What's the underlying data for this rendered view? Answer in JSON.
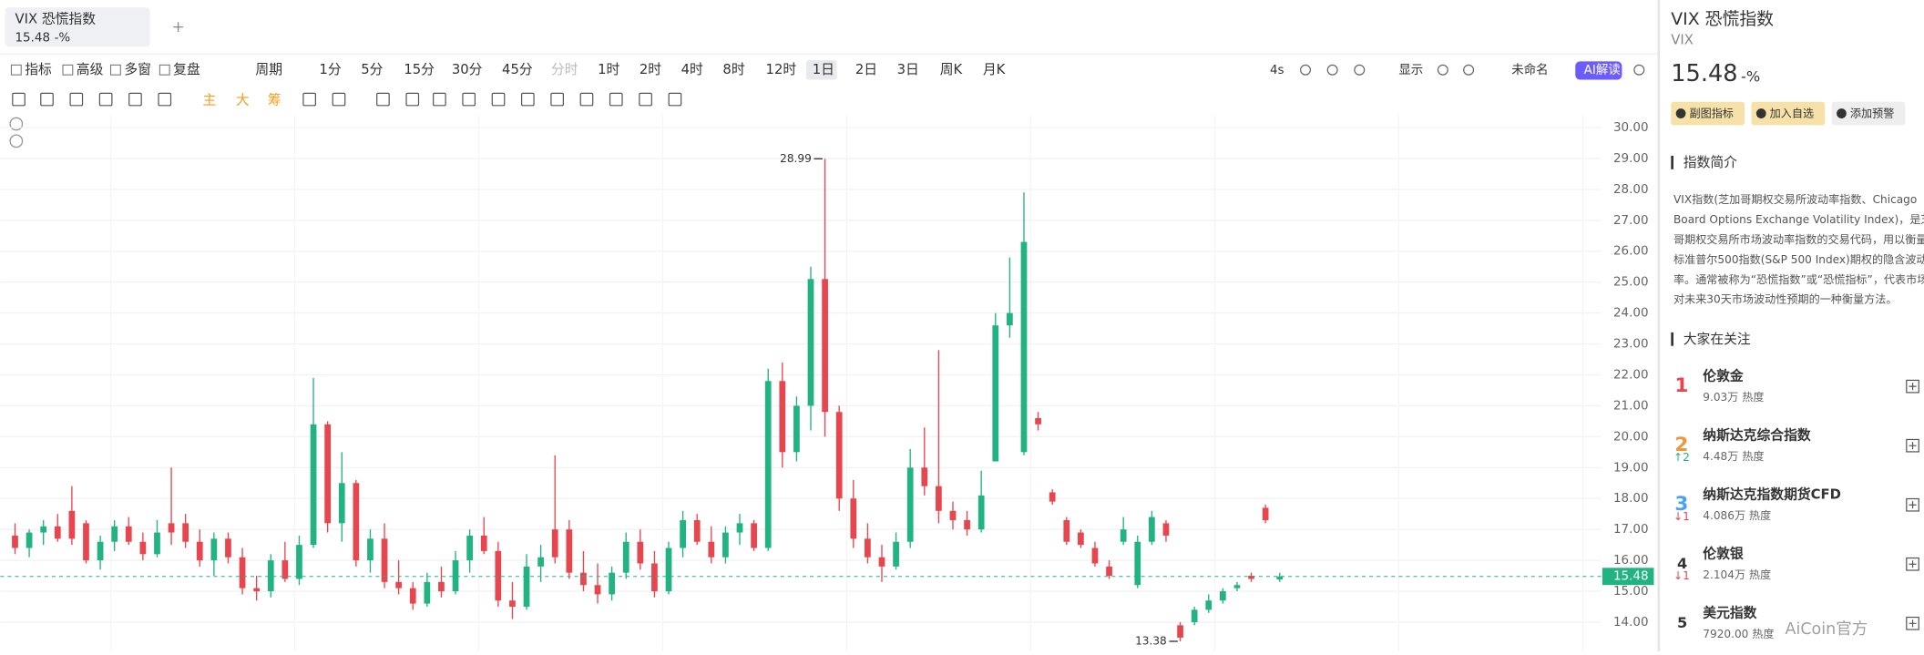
{
  "tab": {
    "name": "VIX 恐慌指数",
    "price": "15.48",
    "change": "-%"
  },
  "toolbar": {
    "items": [
      "指标",
      "高级",
      "多窗",
      "复盘",
      "周期",
      "1分",
      "5分",
      "15分",
      "30分",
      "45分",
      "分时",
      "1时",
      "2时",
      "4时",
      "8时",
      "12时",
      "1日",
      "2日",
      "3日",
      "周K",
      "月K"
    ],
    "active_index": 16,
    "disabled_index": 10,
    "right": [
      "4s",
      "显示",
      "未命名",
      "AI解读"
    ],
    "draw_labels": [
      "主",
      "大",
      "筹"
    ]
  },
  "chart_data": {
    "type": "candlestick",
    "ylim": [
      13,
      30.4
    ],
    "yticks": [
      {
        "value": 14,
        "label": "14.00"
      },
      {
        "value": 15,
        "label": "15.00"
      },
      {
        "value": 16,
        "label": "16.00"
      },
      {
        "value": 17,
        "label": "17.00"
      },
      {
        "value": 18,
        "label": "18.00"
      },
      {
        "value": 19,
        "label": "19.00"
      },
      {
        "value": 20,
        "label": "20.00"
      },
      {
        "value": 21,
        "label": "21.00"
      },
      {
        "value": 22,
        "label": "22.00"
      },
      {
        "value": 23,
        "label": "23.00"
      },
      {
        "value": 24,
        "label": "24.00"
      },
      {
        "value": 25,
        "label": "25.00"
      },
      {
        "value": 26,
        "label": "26.00"
      },
      {
        "value": 27,
        "label": "27.00"
      },
      {
        "value": 28,
        "label": "28.00"
      },
      {
        "value": 29,
        "label": "29.00"
      },
      {
        "value": 30,
        "label": "30.00"
      }
    ],
    "grid": true,
    "up_color": "#22b383",
    "down_color": "#e8464f",
    "candles": [
      [
        16.8,
        17.2,
        16.2,
        16.4
      ],
      [
        16.4,
        17.0,
        16.1,
        16.9
      ],
      [
        16.9,
        17.3,
        16.5,
        17.1
      ],
      [
        17.1,
        17.5,
        16.6,
        16.7
      ],
      [
        17.6,
        18.4,
        16.5,
        16.7
      ],
      [
        17.2,
        17.3,
        15.9,
        16.0
      ],
      [
        16.0,
        16.8,
        15.7,
        16.6
      ],
      [
        16.6,
        17.3,
        16.3,
        17.1
      ],
      [
        17.1,
        17.4,
        16.5,
        16.6
      ],
      [
        16.6,
        16.9,
        16.0,
        16.2
      ],
      [
        16.2,
        17.3,
        16.1,
        16.9
      ],
      [
        17.2,
        19.0,
        16.5,
        16.9
      ],
      [
        17.2,
        17.5,
        16.4,
        16.6
      ],
      [
        16.6,
        17.0,
        15.8,
        16.0
      ],
      [
        16.0,
        16.9,
        15.5,
        16.7
      ],
      [
        16.7,
        16.9,
        15.9,
        16.1
      ],
      [
        16.1,
        16.4,
        14.9,
        15.1
      ],
      [
        15.1,
        15.5,
        14.7,
        15.0
      ],
      [
        15.0,
        16.2,
        14.8,
        16.0
      ],
      [
        16.0,
        16.6,
        15.3,
        15.4
      ],
      [
        15.4,
        16.8,
        15.2,
        16.5
      ],
      [
        16.5,
        21.9,
        16.4,
        20.4
      ],
      [
        20.4,
        20.5,
        16.9,
        17.2
      ],
      [
        17.2,
        19.5,
        16.6,
        18.5
      ],
      [
        18.5,
        18.6,
        15.8,
        16.0
      ],
      [
        16.0,
        17.0,
        15.6,
        16.7
      ],
      [
        16.7,
        17.2,
        15.1,
        15.3
      ],
      [
        15.3,
        16.0,
        14.9,
        15.1
      ],
      [
        15.1,
        15.3,
        14.4,
        14.6
      ],
      [
        14.6,
        15.6,
        14.5,
        15.3
      ],
      [
        15.3,
        15.8,
        14.8,
        15.0
      ],
      [
        15.0,
        16.3,
        14.9,
        16.0
      ],
      [
        16.0,
        17.0,
        15.6,
        16.8
      ],
      [
        16.8,
        17.4,
        16.2,
        16.3
      ],
      [
        16.3,
        16.6,
        14.5,
        14.7
      ],
      [
        14.7,
        15.3,
        14.1,
        14.5
      ],
      [
        14.5,
        16.2,
        14.4,
        15.8
      ],
      [
        15.8,
        16.5,
        15.3,
        16.1
      ],
      [
        17.0,
        19.4,
        15.9,
        16.1
      ],
      [
        17.0,
        17.3,
        15.4,
        15.6
      ],
      [
        15.6,
        16.3,
        15.0,
        15.2
      ],
      [
        15.2,
        15.9,
        14.6,
        14.9
      ],
      [
        14.9,
        15.8,
        14.7,
        15.6
      ],
      [
        15.6,
        16.9,
        15.4,
        16.6
      ],
      [
        16.6,
        17.0,
        15.7,
        15.9
      ],
      [
        15.9,
        16.3,
        14.8,
        15.0
      ],
      [
        15.0,
        16.6,
        14.9,
        16.4
      ],
      [
        16.4,
        17.6,
        16.1,
        17.3
      ],
      [
        17.3,
        17.5,
        16.5,
        16.6
      ],
      [
        16.6,
        17.1,
        15.9,
        16.1
      ],
      [
        16.1,
        17.1,
        15.9,
        16.9
      ],
      [
        16.9,
        17.5,
        16.5,
        17.2
      ],
      [
        17.2,
        17.3,
        16.3,
        16.4
      ],
      [
        16.4,
        22.2,
        16.3,
        21.8
      ],
      [
        21.8,
        22.4,
        19.0,
        19.5
      ],
      [
        19.5,
        21.3,
        19.2,
        21.0
      ],
      [
        21.0,
        25.5,
        20.2,
        25.1
      ],
      [
        25.1,
        28.99,
        20.0,
        20.8
      ],
      [
        20.8,
        21.0,
        17.6,
        18.0
      ],
      [
        18.0,
        18.6,
        16.4,
        16.7
      ],
      [
        16.7,
        17.2,
        15.9,
        16.1
      ],
      [
        16.1,
        16.5,
        15.3,
        15.8
      ],
      [
        15.8,
        16.9,
        15.7,
        16.6
      ],
      [
        16.6,
        19.6,
        16.4,
        19.0
      ],
      [
        19.0,
        20.3,
        18.1,
        18.4
      ],
      [
        18.4,
        22.8,
        17.2,
        17.6
      ],
      [
        17.6,
        17.9,
        17.0,
        17.3
      ],
      [
        17.3,
        17.6,
        16.8,
        17.0
      ],
      [
        17.0,
        18.9,
        16.9,
        18.1
      ],
      [
        19.2,
        24.0,
        19.2,
        23.6
      ],
      [
        23.6,
        25.8,
        23.2,
        24.0
      ],
      [
        19.5,
        27.9,
        19.4,
        26.3
      ],
      [
        20.6,
        20.8,
        20.2,
        20.4
      ],
      [
        18.2,
        18.3,
        17.8,
        17.9
      ],
      [
        17.3,
        17.4,
        16.5,
        16.6
      ],
      [
        16.9,
        17.0,
        16.4,
        16.5
      ],
      [
        16.4,
        16.6,
        15.8,
        15.9
      ],
      [
        15.8,
        16.0,
        15.4,
        15.5
      ],
      [
        16.6,
        17.4,
        16.5,
        17.0
      ],
      [
        15.2,
        16.8,
        15.1,
        16.6
      ],
      [
        16.6,
        17.6,
        16.5,
        17.4
      ],
      [
        17.2,
        17.3,
        16.6,
        16.8
      ],
      [
        13.9,
        14.0,
        13.38,
        13.5
      ],
      [
        14.0,
        14.5,
        13.9,
        14.4
      ],
      [
        14.4,
        14.9,
        14.3,
        14.7
      ],
      [
        14.7,
        15.1,
        14.6,
        15.0
      ],
      [
        15.1,
        15.3,
        15.0,
        15.2
      ],
      [
        15.5,
        15.6,
        15.3,
        15.4
      ],
      [
        17.7,
        17.8,
        17.2,
        17.3
      ],
      [
        15.38,
        15.6,
        15.3,
        15.48
      ]
    ],
    "high_mark": 28.99,
    "low_mark": 13.38,
    "last_price": 15.48
  },
  "panel": {
    "title": "VIX 恐慌指数",
    "symbol": "VIX",
    "price": "15.48",
    "change": "-%",
    "buttons": [
      "副图指标",
      "加入自选",
      "添加预警"
    ],
    "intro_title": "指数简介",
    "intro_lines": [
      "VIX指数(芝加哥期权交易所波动率指数、Chicago",
      "Board Options Exchange Volatility Index)，是芝加",
      "哥期权交易所市场波动率指数的交易代码，用以衡量",
      "标准普尔500指数(S&P 500 Index)期权的隐含波动",
      "率。通常被称为“恐慌指数”或“恐慌指标”，代表市场",
      "对未来30天市场波动性预期的一种衡量方法。"
    ],
    "watch_title": "大家在关注",
    "watch": [
      {
        "rank": 1,
        "name": "伦敦金",
        "heat": "9.03万 热度",
        "rank_color": "#e8464f"
      },
      {
        "rank": 2,
        "name": "纳斯达克综合指数",
        "heat": "4.48万 热度",
        "change": "↑2",
        "change_color": "#22b383",
        "rank_color": "#f0953a"
      },
      {
        "rank": 3,
        "name": "纳斯达克指数期货CFD",
        "heat": "4.086万 热度",
        "change": "↓1",
        "change_color": "#e8464f",
        "rank_color": "#4aa3f0"
      },
      {
        "rank": 4,
        "name": "伦敦银",
        "heat": "2.104万 热度",
        "change": "↓1",
        "change_color": "#e8464f",
        "rank_color": "#333"
      },
      {
        "rank": 5,
        "name": "美元指数",
        "heat": "7920.00 热度",
        "rank_color": "#333"
      }
    ]
  },
  "watermark": "AiCoin官方"
}
